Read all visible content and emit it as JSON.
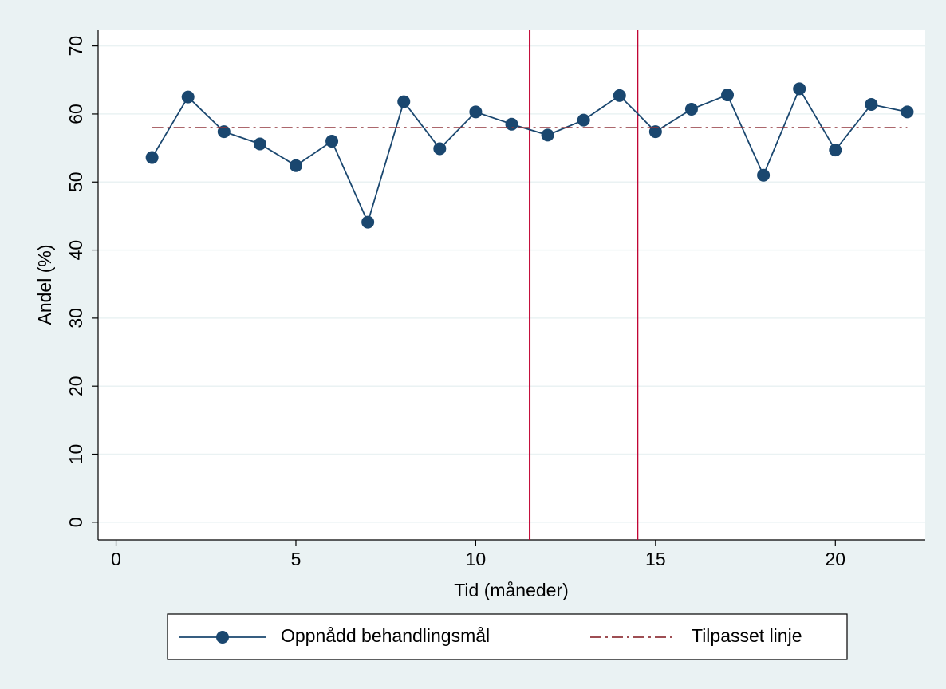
{
  "chart_data": {
    "type": "line",
    "x_label": "Tid (måneder)",
    "y_label": "Andel (%)",
    "x": [
      1,
      2,
      3,
      4,
      5,
      6,
      7,
      8,
      9,
      10,
      11,
      12,
      13,
      14,
      15,
      16,
      17,
      18,
      19,
      20,
      21,
      22
    ],
    "series": [
      {
        "name": "Oppnådd behandlingsmål",
        "color": "#1a476f",
        "style": "line-marker",
        "values": [
          53.6,
          62.5,
          57.4,
          55.6,
          52.4,
          56.0,
          44.1,
          61.8,
          54.9,
          60.3,
          58.5,
          56.9,
          59.1,
          62.7,
          57.4,
          60.7,
          62.8,
          51.0,
          63.7,
          54.7,
          61.4,
          60.3
        ]
      },
      {
        "name": "Tilpasset linje",
        "color": "#90353b",
        "style": "dash-dot",
        "values": [
          58,
          58,
          58,
          58,
          58,
          58,
          58,
          58,
          58,
          58,
          58,
          58,
          58,
          58,
          58,
          58,
          58,
          58,
          58,
          58,
          58,
          58
        ]
      }
    ],
    "reference_lines": {
      "x": [
        11.5,
        14.5
      ],
      "color": "#c10534"
    },
    "xlim": [
      -0.5,
      22.5
    ],
    "xticks": [
      0,
      5,
      10,
      15,
      20
    ],
    "ylim": [
      -2.6,
      72.3
    ],
    "yticks": [
      0,
      10,
      20,
      30,
      40,
      50,
      60,
      70
    ],
    "grid": true,
    "legend": "bottom"
  }
}
